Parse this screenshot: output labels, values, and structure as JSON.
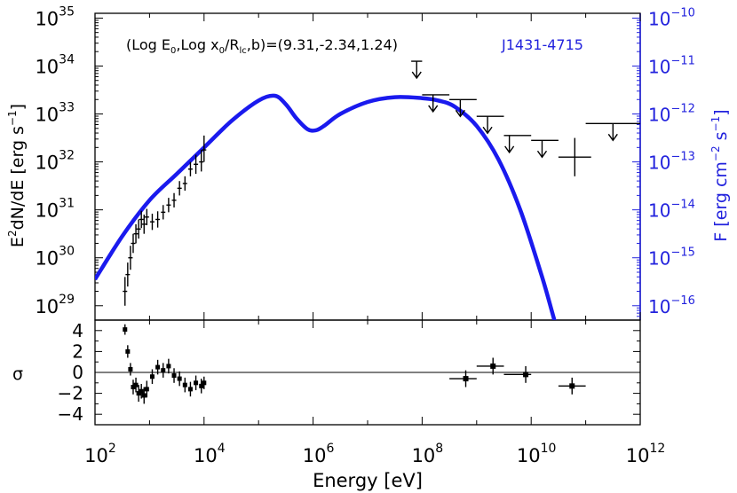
{
  "chart_data": {
    "type": "scatter",
    "source_label": "J1431-4715",
    "annotation": "(Log E₀,Log x₀/Rₗc,b)=(9.31,-2.34,1.24)",
    "annotation_parts": {
      "prefix": "(Log E",
      "sub1": "0",
      "mid1": ",Log x",
      "sub2": "0",
      "mid2": "/R",
      "sub3": "lc",
      "suffix": ",b)=(9.31,-2.34,1.24)"
    },
    "top_panel": {
      "ylabel_parts": {
        "a": "E",
        "sup": "2",
        "b": "dN/dE [erg s",
        "sup2": "−1",
        "c": "]"
      },
      "y_left_log_range": [
        28.7,
        35.1
      ],
      "y_left_ticks": [
        {
          "base": "10",
          "exp": "29",
          "v": 29
        },
        {
          "base": "10",
          "exp": "30",
          "v": 30
        },
        {
          "base": "10",
          "exp": "31",
          "v": 31
        },
        {
          "base": "10",
          "exp": "32",
          "v": 32
        },
        {
          "base": "10",
          "exp": "33",
          "v": 33
        },
        {
          "base": "10",
          "exp": "34",
          "v": 34
        },
        {
          "base": "10",
          "exp": "35",
          "v": 35
        }
      ],
      "right_ylabel_parts": {
        "a": "F [erg cm",
        "sup": "−2",
        "b": " s",
        "sup2": "−1",
        "c": "]"
      },
      "right_log_offset": 45.0,
      "y_right_ticks": [
        {
          "base": "10",
          "exp": "−16",
          "v": -16
        },
        {
          "base": "10",
          "exp": "−15",
          "v": -15
        },
        {
          "base": "10",
          "exp": "−14",
          "v": -14
        },
        {
          "base": "10",
          "exp": "−13",
          "v": -13
        },
        {
          "base": "10",
          "exp": "−12",
          "v": -12
        },
        {
          "base": "10",
          "exp": "−11",
          "v": -11
        },
        {
          "base": "10",
          "exp": "−10",
          "v": -10
        }
      ],
      "model_curve": {
        "color": "#1a1aee",
        "log_x": [
          2.0,
          2.5,
          3.0,
          3.5,
          4.0,
          4.5,
          5.0,
          5.3,
          5.5,
          5.7,
          5.9,
          6.05,
          6.2,
          6.5,
          7.0,
          7.5,
          8.0,
          8.3,
          8.6,
          9.0,
          9.4,
          9.8,
          10.2,
          10.4,
          10.55,
          10.62
        ],
        "log_y": [
          29.55,
          30.45,
          31.2,
          31.75,
          32.3,
          32.85,
          33.28,
          33.38,
          33.2,
          32.9,
          32.68,
          32.66,
          32.75,
          33.0,
          33.25,
          33.35,
          33.33,
          33.28,
          33.15,
          32.75,
          32.05,
          31.0,
          29.6,
          28.8,
          28.2,
          27.8
        ]
      },
      "xray_points": [
        {
          "x": 2.55,
          "y": 29.3,
          "ylo": 29.0,
          "yhi": 29.6
        },
        {
          "x": 2.6,
          "y": 29.65,
          "ylo": 29.4,
          "yhi": 29.9
        },
        {
          "x": 2.65,
          "y": 30.0,
          "ylo": 29.75,
          "yhi": 30.25
        },
        {
          "x": 2.7,
          "y": 30.3,
          "ylo": 30.1,
          "yhi": 30.5
        },
        {
          "x": 2.75,
          "y": 30.5,
          "ylo": 30.3,
          "yhi": 30.7
        },
        {
          "x": 2.8,
          "y": 30.6,
          "ylo": 30.4,
          "yhi": 30.8
        },
        {
          "x": 2.85,
          "y": 30.8,
          "ylo": 30.62,
          "yhi": 30.98
        },
        {
          "x": 2.9,
          "y": 30.7,
          "ylo": 30.5,
          "yhi": 30.9
        },
        {
          "x": 2.95,
          "y": 30.85,
          "ylo": 30.68,
          "yhi": 31.02
        },
        {
          "x": 3.05,
          "y": 30.75,
          "ylo": 30.58,
          "yhi": 30.92
        },
        {
          "x": 3.15,
          "y": 30.8,
          "ylo": 30.63,
          "yhi": 30.97
        },
        {
          "x": 3.25,
          "y": 30.95,
          "ylo": 30.8,
          "yhi": 31.1
        },
        {
          "x": 3.35,
          "y": 31.1,
          "ylo": 30.95,
          "yhi": 31.25
        },
        {
          "x": 3.45,
          "y": 31.2,
          "ylo": 31.05,
          "yhi": 31.35
        },
        {
          "x": 3.55,
          "y": 31.45,
          "ylo": 31.3,
          "yhi": 31.6
        },
        {
          "x": 3.65,
          "y": 31.55,
          "ylo": 31.4,
          "yhi": 31.7
        },
        {
          "x": 3.75,
          "y": 31.85,
          "ylo": 31.7,
          "yhi": 32.0
        },
        {
          "x": 3.85,
          "y": 31.95,
          "ylo": 31.75,
          "yhi": 32.15
        },
        {
          "x": 3.95,
          "y": 32.0,
          "ylo": 31.8,
          "yhi": 32.25
        },
        {
          "x": 4.0,
          "y": 32.25,
          "ylo": 32.0,
          "yhi": 32.55
        }
      ],
      "gamma_points": [
        {
          "x": 10.8,
          "xlo": 10.5,
          "xhi": 11.1,
          "y": 32.1,
          "ylo": 31.7,
          "yhi": 32.5
        }
      ],
      "upper_limits": [
        {
          "x": 7.9,
          "xlo": 7.8,
          "xhi": 8.0,
          "y": 34.1
        },
        {
          "x": 8.2,
          "xlo": 8.0,
          "xhi": 8.5,
          "y": 33.4
        },
        {
          "x": 8.7,
          "xlo": 8.5,
          "xhi": 9.0,
          "y": 33.3
        },
        {
          "x": 9.2,
          "xlo": 9.0,
          "xhi": 9.5,
          "y": 32.95
        },
        {
          "x": 9.6,
          "xlo": 9.5,
          "xhi": 10.0,
          "y": 32.55
        },
        {
          "x": 10.2,
          "xlo": 10.0,
          "xhi": 10.5,
          "y": 32.45
        },
        {
          "x": 11.5,
          "xlo": 11.0,
          "xhi": 12.0,
          "y": 32.8
        }
      ]
    },
    "bottom_panel": {
      "ylabel": "σ",
      "ylim": [
        -5,
        5
      ],
      "y_ticks": [
        "4",
        "2",
        "0",
        "−2",
        "−4"
      ],
      "y_tick_values": [
        4,
        2,
        0,
        -2,
        -4
      ],
      "xray_residuals": [
        {
          "x": 2.55,
          "y": 4.1,
          "e": 0.5
        },
        {
          "x": 2.6,
          "y": 2.0,
          "e": 0.6
        },
        {
          "x": 2.65,
          "y": 0.3,
          "e": 0.6
        },
        {
          "x": 2.7,
          "y": -1.4,
          "e": 0.7
        },
        {
          "x": 2.75,
          "y": -1.2,
          "e": 0.7
        },
        {
          "x": 2.8,
          "y": -2.0,
          "e": 0.8
        },
        {
          "x": 2.85,
          "y": -1.8,
          "e": 0.7
        },
        {
          "x": 2.9,
          "y": -2.2,
          "e": 0.8
        },
        {
          "x": 2.95,
          "y": -1.6,
          "e": 0.8
        },
        {
          "x": 3.05,
          "y": -0.4,
          "e": 0.7
        },
        {
          "x": 3.15,
          "y": 0.5,
          "e": 0.7
        },
        {
          "x": 3.25,
          "y": 0.2,
          "e": 0.7
        },
        {
          "x": 3.35,
          "y": 0.6,
          "e": 0.7
        },
        {
          "x": 3.45,
          "y": -0.3,
          "e": 0.7
        },
        {
          "x": 3.55,
          "y": -0.6,
          "e": 0.7
        },
        {
          "x": 3.65,
          "y": -1.2,
          "e": 0.7
        },
        {
          "x": 3.75,
          "y": -1.6,
          "e": 0.7
        },
        {
          "x": 3.85,
          "y": -1.0,
          "e": 0.7
        },
        {
          "x": 3.95,
          "y": -1.3,
          "e": 0.7
        },
        {
          "x": 4.0,
          "y": -1.0,
          "e": 0.6
        }
      ],
      "gamma_residuals": [
        {
          "x": 8.8,
          "xlo": 8.5,
          "xhi": 9.0,
          "y": -0.6,
          "e": 0.8
        },
        {
          "x": 9.3,
          "xlo": 9.0,
          "xhi": 9.5,
          "y": 0.6,
          "e": 0.8
        },
        {
          "x": 9.9,
          "xlo": 9.5,
          "xhi": 10.0,
          "y": -0.2,
          "e": 0.8
        },
        {
          "x": 10.75,
          "xlo": 10.5,
          "xhi": 11.0,
          "y": -1.3,
          "e": 0.8
        }
      ]
    },
    "xaxis": {
      "label": "Energy [eV]",
      "log_range": [
        2,
        12
      ],
      "ticks": [
        {
          "base": "10",
          "exp": "2",
          "v": 2
        },
        {
          "base": "10",
          "exp": "4",
          "v": 4
        },
        {
          "base": "10",
          "exp": "6",
          "v": 6
        },
        {
          "base": "10",
          "exp": "8",
          "v": 8
        },
        {
          "base": "10",
          "exp": "10",
          "v": 10
        },
        {
          "base": "10",
          "exp": "12",
          "v": 12
        }
      ]
    }
  }
}
